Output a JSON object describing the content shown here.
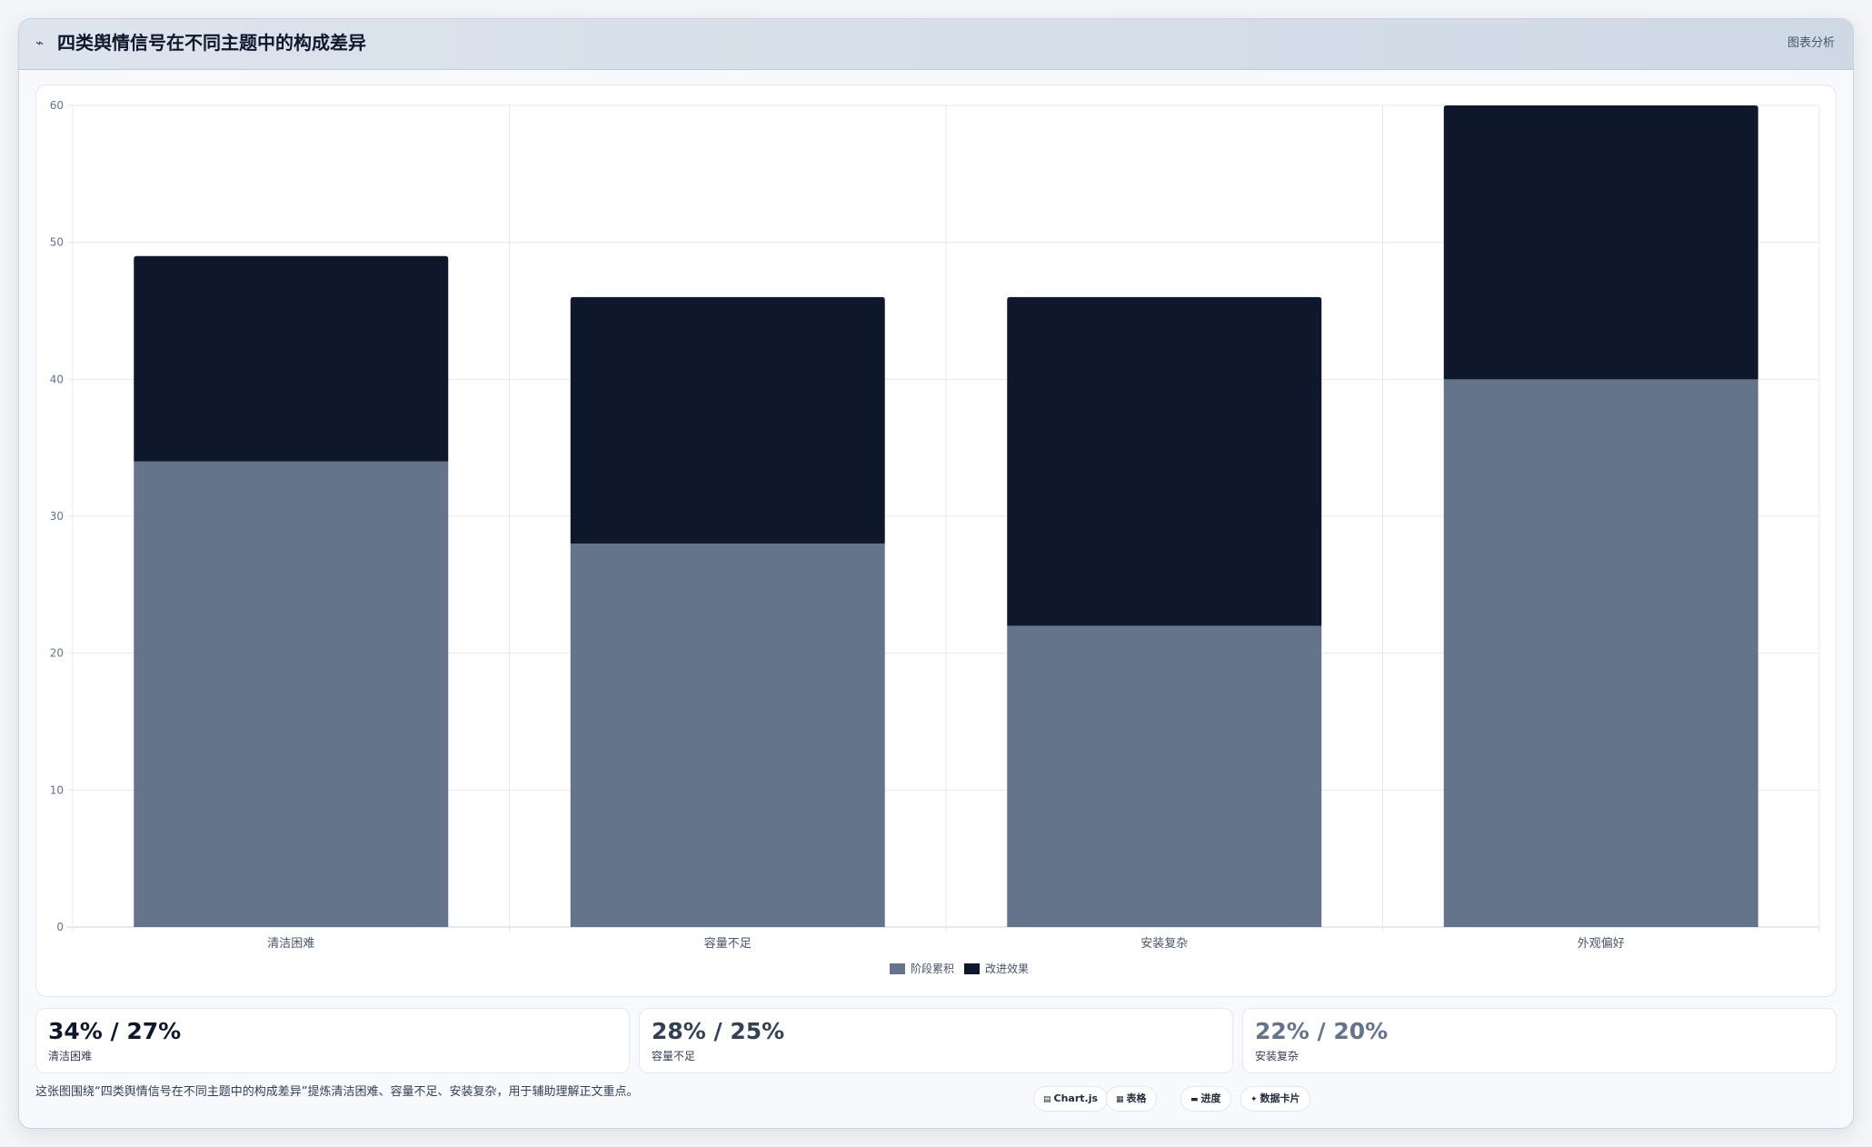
{
  "header": {
    "icon": "trend-line-icon",
    "title": "四类舆情信号在不同主题中的构成差异",
    "tag": "图表分析"
  },
  "chart_data": {
    "type": "bar",
    "stacked": true,
    "categories": [
      "清洁困难",
      "容量不足",
      "安装复杂",
      "外观偏好"
    ],
    "series": [
      {
        "name": "阶段累积",
        "values": [
          34,
          28,
          22,
          40
        ],
        "color": "#64748b"
      },
      {
        "name": "改进效果",
        "values": [
          15,
          18,
          24,
          20
        ],
        "color": "#0f172a"
      }
    ],
    "ylim": [
      0,
      60
    ],
    "yticks": [
      0,
      10,
      20,
      30,
      40,
      50,
      60
    ],
    "grid": true,
    "legend": "bottom"
  },
  "stats": [
    {
      "value": "34% / 27%",
      "label": "清洁困难",
      "color": "#0f172a"
    },
    {
      "value": "28% / 25%",
      "label": "容量不足",
      "color": "#334155"
    },
    {
      "value": "22% / 20%",
      "label": "安装复杂",
      "color": "#64748b"
    }
  ],
  "footer": {
    "description": "这张图围绕“四类舆情信号在不同主题中的构成差异”提炼清洁困难、容量不足、安装复杂，用于辅助理解正文重点。",
    "chips": [
      {
        "icon": "▤",
        "label": "Chart.js"
      },
      {
        "icon": "▦",
        "label": "表格"
      },
      {
        "icon": "▬",
        "label": "进度"
      },
      {
        "icon": "✦",
        "label": "数据卡片"
      }
    ]
  }
}
